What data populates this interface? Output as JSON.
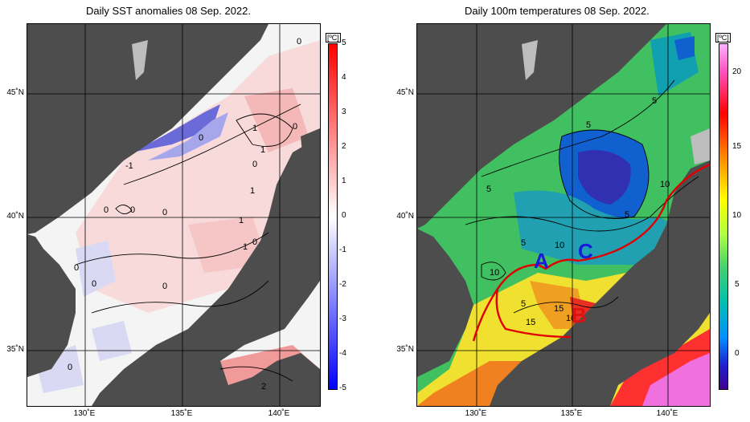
{
  "panels": [
    {
      "id": "sst-anomaly",
      "title": "Daily SST anomalies 08 Sep. 2022.",
      "unit": "[ºC]",
      "colorbar_ticks": [
        "5",
        "4",
        "3",
        "2",
        "1",
        "0",
        "-1",
        "-2",
        "-3",
        "-4",
        "-5"
      ],
      "lat_labels": [
        "45˚N",
        "40˚N",
        "35˚N"
      ],
      "lon_labels": [
        "130˚E",
        "135˚E",
        "140˚E"
      ],
      "contour_labels": [
        "0",
        "1",
        "0",
        "0",
        "1",
        "-1",
        "0",
        "1",
        "0",
        "0",
        "0",
        "1",
        "1",
        "0",
        "0",
        "0",
        "0",
        "0",
        "2"
      ]
    },
    {
      "id": "temp-100m",
      "title": "Daily 100m temperatures 08 Sep. 2022.",
      "unit": "[ºC]",
      "colorbar_ticks": [
        "20",
        "15",
        "10",
        "5",
        "0"
      ],
      "lat_labels": [
        "45˚N",
        "40˚N",
        "35˚N"
      ],
      "lon_labels": [
        "130˚E",
        "135˚E",
        "140˚E"
      ],
      "contour_labels": [
        "5",
        "5",
        "5",
        "10",
        "5",
        "5",
        "10",
        "10",
        "5",
        "15",
        "15",
        "10"
      ],
      "region_labels": [
        {
          "text": "A",
          "color": "#1a1adc"
        },
        {
          "text": "B",
          "color": "#e01010"
        },
        {
          "text": "C",
          "color": "#1a1adc"
        }
      ]
    }
  ],
  "colors": {
    "land": "#4d4d4d",
    "land_light": "#bdbdbd",
    "front_line": "#e00000",
    "anomaly_colorbar": [
      "#ff0000",
      "#ff9090",
      "#ffffff",
      "#9090ff",
      "#0000ff"
    ],
    "temp_colorbar": [
      "#ff80ff",
      "#ff0000",
      "#ff8000",
      "#ffff00",
      "#80ff40",
      "#00c0a0",
      "#0080ff",
      "#4000a0"
    ]
  }
}
